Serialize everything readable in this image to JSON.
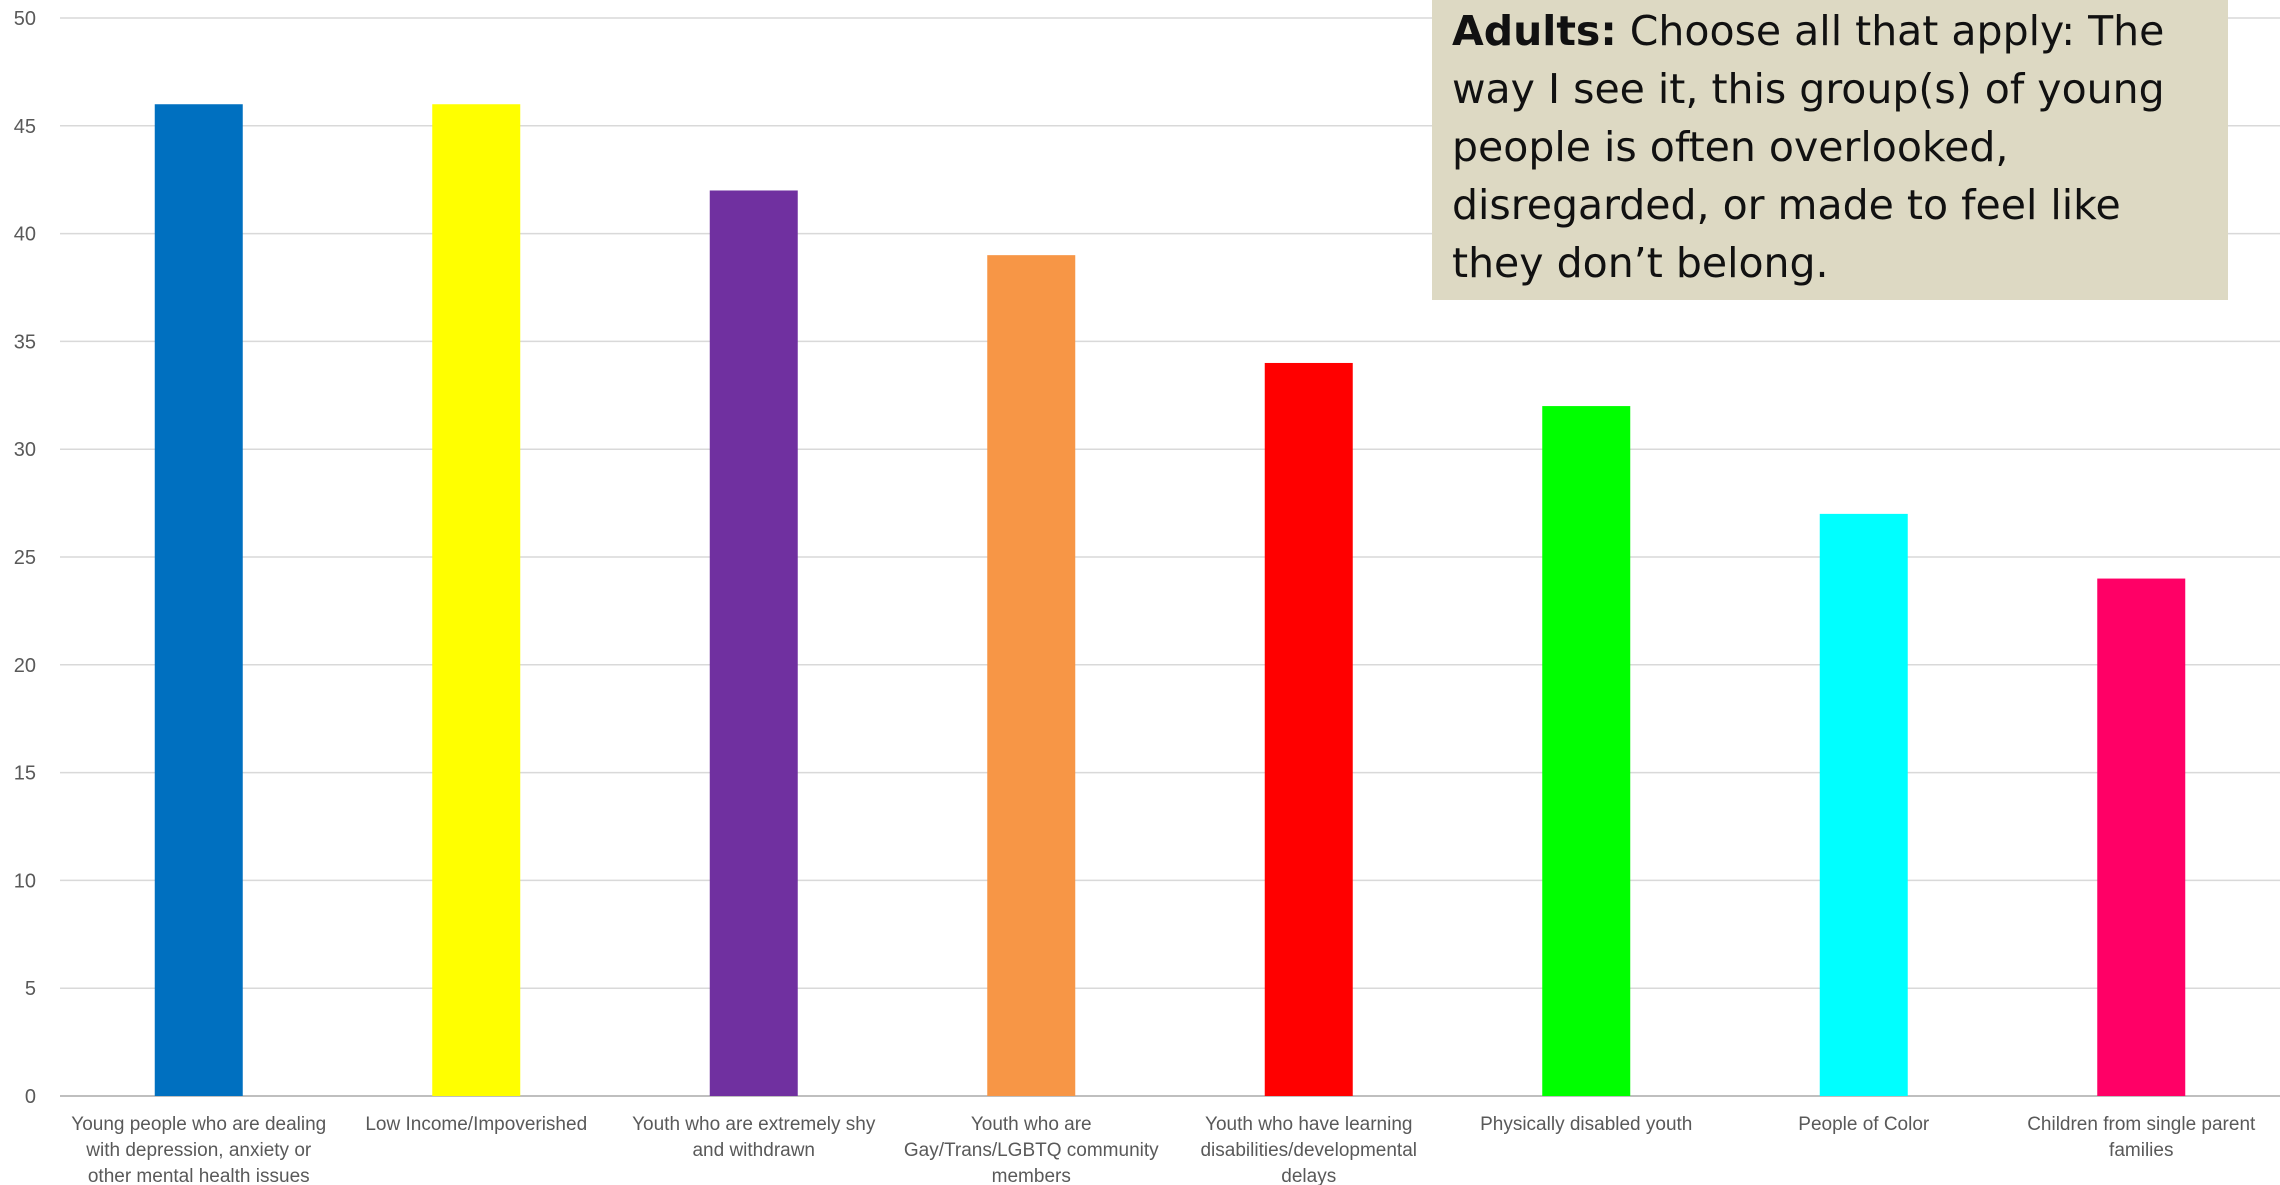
{
  "chart_data": {
    "type": "bar",
    "title_prefix": "Adults:",
    "title_text": "Choose all that apply: The way I see it, this group(s) of young people is often overlooked, disregarded, or made to feel like they don’t belong.",
    "xlabel": "",
    "ylabel": "",
    "ylim": [
      0,
      50
    ],
    "yticks": [
      "0",
      "5",
      "10",
      "15",
      "20",
      "25",
      "30",
      "35",
      "40",
      "45",
      "50"
    ],
    "grid": true,
    "legend": "none",
    "categories": [
      "Young people who are dealing with depression, anxiety or other mental health issues",
      "Low Income/Impoverished",
      "Youth who are extremely shy and withdrawn",
      "Youth who are Gay/Trans/LGBTQ community members",
      "Youth who have learning disabilities/developmental delays",
      "Physically disabled youth",
      "People of Color",
      "Children from single parent families"
    ],
    "category_lines": [
      [
        "Young people who are dealing",
        "with depression, anxiety or",
        "other mental health issues"
      ],
      [
        "Low Income/Impoverished"
      ],
      [
        "Youth who are extremely shy",
        "and withdrawn"
      ],
      [
        "Youth who are",
        "Gay/Trans/LGBTQ community",
        "members"
      ],
      [
        "Youth who have learning",
        "disabilities/developmental",
        "delays"
      ],
      [
        "Physically disabled youth"
      ],
      [
        "People of Color"
      ],
      [
        "Children from single parent",
        "families"
      ]
    ],
    "values": [
      46,
      46,
      42,
      39,
      34,
      32,
      27,
      24
    ],
    "colors": [
      "#0070c0",
      "#ffff00",
      "#7030a0",
      "#f79646",
      "#ff0000",
      "#00ff00",
      "#00ffff",
      "#ff0066"
    ],
    "gridline_color": "#d9d9d9",
    "axis_color": "#bfbfbf",
    "title_box_color": "#ddd9c3"
  }
}
